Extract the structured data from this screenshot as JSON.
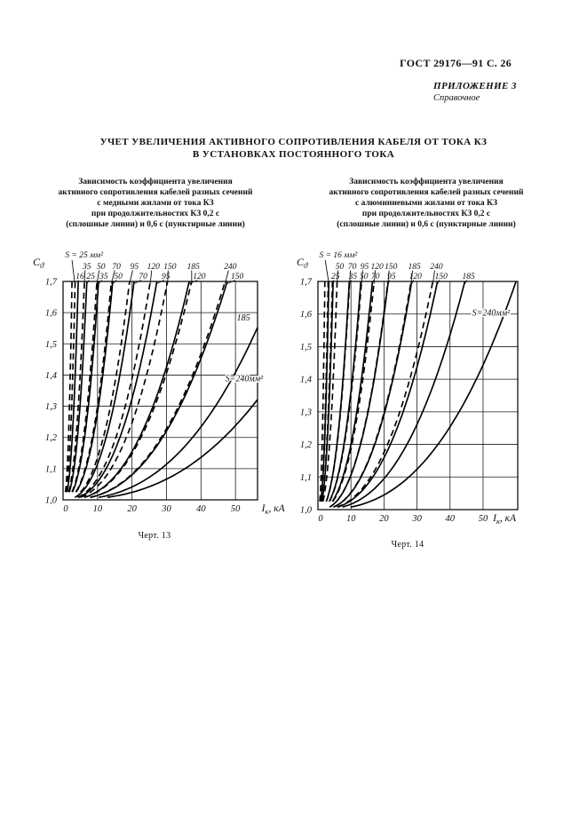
{
  "header": {
    "standard_ref": "ГОСТ 29176—91 С. 26",
    "annex_label": "ПРИЛОЖЕНИЕ 3",
    "annex_type": "Справочное"
  },
  "title": {
    "line1": "УЧЕТ УВЕЛИЧЕНИЯ АКТИВНОГО СОПРОТИВЛЕНИЯ КАБЕЛЯ ОТ ТОКА КЗ",
    "line2": "В УСТАНОВКАХ ПОСТОЯННОГО ТОКА"
  },
  "figures": [
    {
      "caption": "Черт. 13",
      "subtitle_lines": [
        "Зависимость коэффициента увеличения",
        "активного сопротивления кабелей разных сечений",
        "с медными жилами от тока КЗ",
        "при продолжительностях КЗ 0,2 с",
        "(сплошные линии) и 0,6 с (пунктирные линии)"
      ]
    },
    {
      "caption": "Черт. 14",
      "subtitle_lines": [
        "Зависимость коэффициента увеличения",
        "активного сопротивления кабелей разных сечений",
        "с алюминиевыми жилами от тока КЗ",
        "при продолжительностях КЗ 0,2 с",
        "(сплошные линии) и 0,6 с (пунктирные линии)"
      ]
    }
  ],
  "chart_data": [
    {
      "type": "line",
      "figure": "Черт. 13",
      "conductor": "медные жилы",
      "xlabel": "Iк, кА",
      "ylabel": "Cϑ",
      "xlim": [
        0,
        56.4
      ],
      "ylim": [
        1.0,
        1.7
      ],
      "x_ticks": [
        0,
        10,
        20,
        30,
        40,
        50
      ],
      "y_tick_labels": [
        "1,0",
        "1,1",
        "1,2",
        "1,3",
        "1,4",
        "1,5",
        "1,6",
        "1,7"
      ],
      "grid": true,
      "xlabel_x": 57.6,
      "legend": {
        "solid": "КЗ 0,2 с",
        "dashed": "КЗ 0,6 с"
      },
      "curve_model": "c = 1 + 0.7·(x/x_c17)^2.5",
      "s_label": {
        "text": "S = 25 мм²",
        "label_x": 0.6,
        "leader_from": 2.6,
        "target_x": 3.4
      },
      "top_label_rows": [
        {
          "labels": [
            {
              "text": "35",
              "x": 6.9,
              "target": 6.2
            },
            {
              "text": "50",
              "x": 11.0,
              "target": 9.8
            },
            {
              "text": "70",
              "x": 15.5,
              "target": 14.0
            },
            {
              "text": "95",
              "x": 20.7,
              "target": 19.3
            },
            {
              "text": "120",
              "x": 26.2,
              "target": 25.3
            },
            {
              "text": "150",
              "x": 31.0,
              "target": 30.3
            },
            {
              "text": "185",
              "x": 37.8,
              "target": 37.3
            },
            {
              "text": "240",
              "x": 48.5,
              "target": 47.0
            }
          ]
        },
        {
          "labels": [
            {
              "text": "16",
              "x": 4.9,
              "target": 4.4
            },
            {
              "text": "25",
              "x": 8.0,
              "target": 6.9
            },
            {
              "text": "35",
              "x": 11.8,
              "target": 10.3
            },
            {
              "text": "50",
              "x": 16.0,
              "target": 14.4
            },
            {
              "text": "70",
              "x": 23.2,
              "target": 20.6
            },
            {
              "text": "95",
              "x": 29.8,
              "target": 27.2
            },
            {
              "text": "120",
              "x": 39.5,
              "target": 36.6
            },
            {
              "text": "150",
              "x": 50.5,
              "target": 47.6
            }
          ]
        }
      ],
      "inside_labels": [
        {
          "text": "185",
          "x": 52.3,
          "c": 1.575
        },
        {
          "text": "S=240мм²",
          "x": 52.5,
          "c": 1.38
        }
      ],
      "series": [
        {
          "section_mm2": 16,
          "kz_s": 0.2,
          "style": "solid",
          "x_c17": 4.4
        },
        {
          "section_mm2": 25,
          "kz_s": 0.2,
          "style": "solid",
          "x_c17": 6.9
        },
        {
          "section_mm2": 35,
          "kz_s": 0.2,
          "style": "solid",
          "x_c17": 10.3
        },
        {
          "section_mm2": 50,
          "kz_s": 0.2,
          "style": "solid",
          "x_c17": 14.4
        },
        {
          "section_mm2": 70,
          "kz_s": 0.2,
          "style": "solid",
          "x_c17": 20.6
        },
        {
          "section_mm2": 95,
          "kz_s": 0.2,
          "style": "solid",
          "x_c17": 27.2
        },
        {
          "section_mm2": 120,
          "kz_s": 0.2,
          "style": "solid",
          "x_c17": 36.6
        },
        {
          "section_mm2": 150,
          "kz_s": 0.2,
          "style": "solid",
          "x_c17": 47.6
        },
        {
          "section_mm2": 185,
          "kz_s": 0.2,
          "style": "solid",
          "x_c17": 62
        },
        {
          "section_mm2": 240,
          "kz_s": 0.2,
          "style": "solid",
          "x_c17": 77
        },
        {
          "section_mm2": 16,
          "kz_s": 0.6,
          "style": "dashed",
          "x_c17": 2.6
        },
        {
          "section_mm2": 25,
          "kz_s": 0.6,
          "style": "dashed",
          "x_c17": 3.5
        },
        {
          "section_mm2": 35,
          "kz_s": 0.6,
          "style": "dashed",
          "x_c17": 6.2
        },
        {
          "section_mm2": 50,
          "kz_s": 0.6,
          "style": "dashed",
          "x_c17": 9.8
        },
        {
          "section_mm2": 70,
          "kz_s": 0.6,
          "style": "dashed",
          "x_c17": 14.0
        },
        {
          "section_mm2": 95,
          "kz_s": 0.6,
          "style": "dashed",
          "x_c17": 19.3
        },
        {
          "section_mm2": 120,
          "kz_s": 0.6,
          "style": "dashed",
          "x_c17": 25.3
        },
        {
          "section_mm2": 150,
          "kz_s": 0.6,
          "style": "dashed",
          "x_c17": 30.3
        },
        {
          "section_mm2": 185,
          "kz_s": 0.6,
          "style": "dashed",
          "x_c17": 37.3
        },
        {
          "section_mm2": 240,
          "kz_s": 0.6,
          "style": "dashed",
          "x_c17": 47.0
        }
      ]
    },
    {
      "type": "line",
      "figure": "Черт. 14",
      "conductor": "алюминиевые жилы",
      "xlabel": "Iк, кА",
      "ylabel": "Cϑ",
      "xlim": [
        0,
        60.5
      ],
      "ylim": [
        1.0,
        1.7
      ],
      "x_ticks": [
        0,
        10,
        20,
        30,
        40,
        50
      ],
      "y_tick_labels": [
        "1,0",
        "1,1",
        "1,2",
        "1,3",
        "1,4",
        "1,5",
        "1,6",
        "1,7"
      ],
      "grid": true,
      "xlabel_x": 53.0,
      "legend": {
        "solid": "КЗ 0,2 с",
        "dashed": "КЗ 0,6 с"
      },
      "curve_model": "c = 1 + 0.7·(x/x_c17)^2.5",
      "s_label": {
        "text": "S = 16 мм²",
        "label_x": 0.4,
        "leader_from": 2.2,
        "target_x": 3.3
      },
      "top_label_rows": [
        {
          "labels": [
            {
              "text": "50",
              "x": 6.6,
              "target": 5.8
            },
            {
              "text": "70",
              "x": 10.4,
              "target": 9.6
            },
            {
              "text": "95",
              "x": 14.1,
              "target": 13.2
            },
            {
              "text": "120",
              "x": 17.9,
              "target": 17.0
            },
            {
              "text": "150",
              "x": 22.1,
              "target": 21.2
            },
            {
              "text": "185",
              "x": 29.2,
              "target": 28.2
            },
            {
              "text": "240",
              "x": 35.9,
              "target": 34.8
            }
          ]
        },
        {
          "labels": [
            {
              "text": "25",
              "x": 5.3,
              "target": 4.6
            },
            {
              "text": "35",
              "x": 10.6,
              "target": 9.5
            },
            {
              "text": "50",
              "x": 13.9,
              "target": 13.0
            },
            {
              "text": "70",
              "x": 17.4,
              "target": 16.5
            },
            {
              "text": "95",
              "x": 22.3,
              "target": 21.3
            },
            {
              "text": "120",
              "x": 29.5,
              "target": 28.4
            },
            {
              "text": "150",
              "x": 37.3,
              "target": 36.2
            },
            {
              "text": "185",
              "x": 45.6,
              "target": 44.5
            }
          ]
        }
      ],
      "inside_labels": [
        {
          "text": "S=240мм²",
          "x": 52.4,
          "c": 1.595
        }
      ],
      "series": [
        {
          "section_mm2": 16,
          "kz_s": 0.2,
          "style": "solid",
          "x_c17": 3.3
        },
        {
          "section_mm2": 25,
          "kz_s": 0.2,
          "style": "solid",
          "x_c17": 4.6
        },
        {
          "section_mm2": 35,
          "kz_s": 0.2,
          "style": "solid",
          "x_c17": 9.5
        },
        {
          "section_mm2": 50,
          "kz_s": 0.2,
          "style": "solid",
          "x_c17": 13.0
        },
        {
          "section_mm2": 70,
          "kz_s": 0.2,
          "style": "solid",
          "x_c17": 16.5
        },
        {
          "section_mm2": 95,
          "kz_s": 0.2,
          "style": "solid",
          "x_c17": 21.3
        },
        {
          "section_mm2": 120,
          "kz_s": 0.2,
          "style": "solid",
          "x_c17": 28.4
        },
        {
          "section_mm2": 150,
          "kz_s": 0.2,
          "style": "solid",
          "x_c17": 36.2
        },
        {
          "section_mm2": 185,
          "kz_s": 0.2,
          "style": "solid",
          "x_c17": 44.5
        },
        {
          "section_mm2": 240,
          "kz_s": 0.2,
          "style": "solid",
          "x_c17": 60
        },
        {
          "section_mm2": 16,
          "kz_s": 0.6,
          "style": "dashed",
          "x_c17": 2.1
        },
        {
          "section_mm2": 25,
          "kz_s": 0.6,
          "style": "dashed",
          "x_c17": 3.1
        },
        {
          "section_mm2": 35,
          "kz_s": 0.6,
          "style": "dashed",
          "x_c17": 4.4
        },
        {
          "section_mm2": 50,
          "kz_s": 0.6,
          "style": "dashed",
          "x_c17": 5.8
        },
        {
          "section_mm2": 70,
          "kz_s": 0.6,
          "style": "dashed",
          "x_c17": 9.6
        },
        {
          "section_mm2": 95,
          "kz_s": 0.6,
          "style": "dashed",
          "x_c17": 13.2
        },
        {
          "section_mm2": 120,
          "kz_s": 0.6,
          "style": "dashed",
          "x_c17": 17.0
        },
        {
          "section_mm2": 150,
          "kz_s": 0.6,
          "style": "dashed",
          "x_c17": 21.2
        },
        {
          "section_mm2": 185,
          "kz_s": 0.6,
          "style": "dashed",
          "x_c17": 28.2
        },
        {
          "section_mm2": 240,
          "kz_s": 0.6,
          "style": "dashed",
          "x_c17": 34.8
        }
      ]
    }
  ]
}
